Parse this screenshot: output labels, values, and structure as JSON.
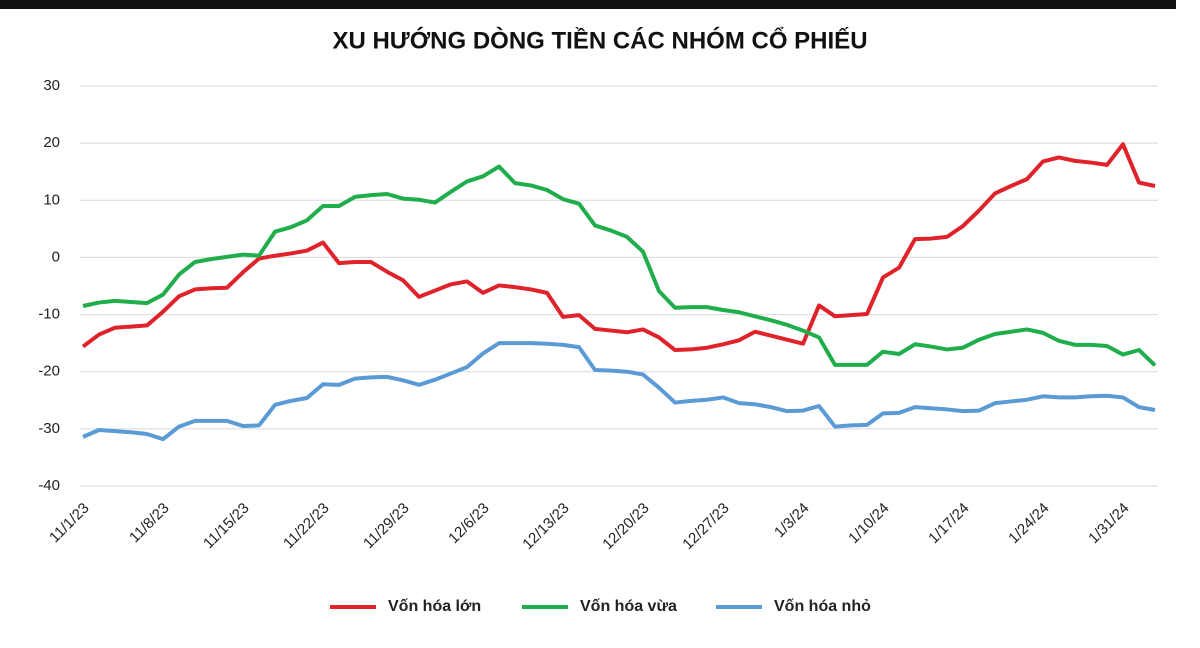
{
  "chart_data": {
    "type": "line",
    "title": "XU HƯỚNG DÒNG TIỀN CÁC NHÓM CỔ PHIẾU",
    "categories": [
      "11/1/23",
      null,
      null,
      null,
      null,
      "11/8/23",
      null,
      null,
      null,
      null,
      "11/15/23",
      null,
      null,
      null,
      null,
      "11/22/23",
      null,
      null,
      null,
      null,
      "11/29/23",
      null,
      null,
      null,
      null,
      "12/6/23",
      null,
      null,
      null,
      null,
      "12/13/23",
      null,
      null,
      null,
      null,
      "12/20/23",
      null,
      null,
      null,
      null,
      "12/27/23",
      null,
      null,
      null,
      null,
      "1/3/24",
      null,
      null,
      null,
      null,
      "1/10/24",
      null,
      null,
      null,
      null,
      "1/17/24",
      null,
      null,
      null,
      null,
      "1/24/24",
      null,
      null,
      null,
      null,
      "1/31/24",
      null,
      null
    ],
    "series": [
      {
        "name": "Vốn hóa lớn",
        "color": "#e0222a",
        "values": [
          -15.6,
          -13.5,
          -12.3,
          -12.1,
          -11.9,
          -9.5,
          -6.8,
          -5.6,
          -5.4,
          -5.3,
          -2.6,
          -0.2,
          0.3,
          0.7,
          1.2,
          2.6,
          -1.0,
          -0.8,
          -0.8,
          -2.5,
          -4.0,
          -6.9,
          -5.8,
          -4.7,
          -4.2,
          -6.2,
          -4.9,
          -5.2,
          -5.6,
          -6.2,
          -10.4,
          -10.1,
          -12.5,
          -12.8,
          -13.1,
          -12.6,
          -14.0,
          -16.2,
          -16.1,
          -15.8,
          -15.2,
          -14.5,
          -13.0,
          -13.7,
          -14.4,
          -15.1,
          -8.4,
          -10.3,
          -10.1,
          -9.9,
          -3.5,
          -1.8,
          3.2,
          3.3,
          3.6,
          5.5,
          8.2,
          11.2,
          12.5,
          13.7,
          16.8,
          17.5,
          16.9,
          16.6,
          16.2,
          19.8,
          13.1,
          12.5
        ]
      },
      {
        "name": "Vốn hóa vừa",
        "color": "#1fae4b",
        "values": [
          -8.5,
          -7.9,
          -7.6,
          -7.8,
          -8.0,
          -6.5,
          -3.0,
          -0.8,
          -0.3,
          0.1,
          0.5,
          0.3,
          4.5,
          5.3,
          6.5,
          9.0,
          9.0,
          10.6,
          10.9,
          11.1,
          10.3,
          10.1,
          9.6,
          11.5,
          13.3,
          14.2,
          15.9,
          13.0,
          12.6,
          11.8,
          10.2,
          9.4,
          5.6,
          4.7,
          3.6,
          1.0,
          -5.9,
          -8.8,
          -8.7,
          -8.7,
          -9.2,
          -9.6,
          -10.3,
          -11.0,
          -11.8,
          -12.8,
          -14.0,
          -18.8,
          -18.8,
          -18.8,
          -16.5,
          -16.9,
          -15.2,
          -15.6,
          -16.1,
          -15.8,
          -14.4,
          -13.4,
          -13.0,
          -12.6,
          -13.2,
          -14.6,
          -15.3,
          -15.3,
          -15.5,
          -17.0,
          -16.2,
          -18.9
        ]
      },
      {
        "name": "Vốn hóa nhỏ",
        "color": "#5b9bd5",
        "values": [
          -31.4,
          -30.2,
          -30.4,
          -30.6,
          -30.9,
          -31.8,
          -29.6,
          -28.6,
          -28.6,
          -28.6,
          -29.5,
          -29.4,
          -25.8,
          -25.1,
          -24.6,
          -22.2,
          -22.3,
          -21.2,
          -21.0,
          -20.9,
          -21.5,
          -22.3,
          -21.4,
          -20.3,
          -19.2,
          -16.8,
          -15.0,
          -15.0,
          -15.0,
          -15.1,
          -15.3,
          -15.7,
          -19.7,
          -19.8,
          -20.0,
          -20.5,
          -22.8,
          -25.4,
          -25.1,
          -24.9,
          -24.5,
          -25.5,
          -25.7,
          -26.2,
          -26.9,
          -26.8,
          -26.0,
          -29.6,
          -29.4,
          -29.3,
          -27.3,
          -27.2,
          -26.2,
          -26.4,
          -26.6,
          -26.9,
          -26.8,
          -25.5,
          -25.2,
          -24.9,
          -24.3,
          -24.5,
          -24.5,
          -24.3,
          -24.2,
          -24.5,
          -26.2,
          -26.7
        ]
      }
    ],
    "ylim": [
      -40,
      30
    ],
    "yticks": [
      -40,
      -30,
      -20,
      -10,
      0,
      10,
      20,
      30
    ],
    "grid": true,
    "legend": "bottom"
  }
}
